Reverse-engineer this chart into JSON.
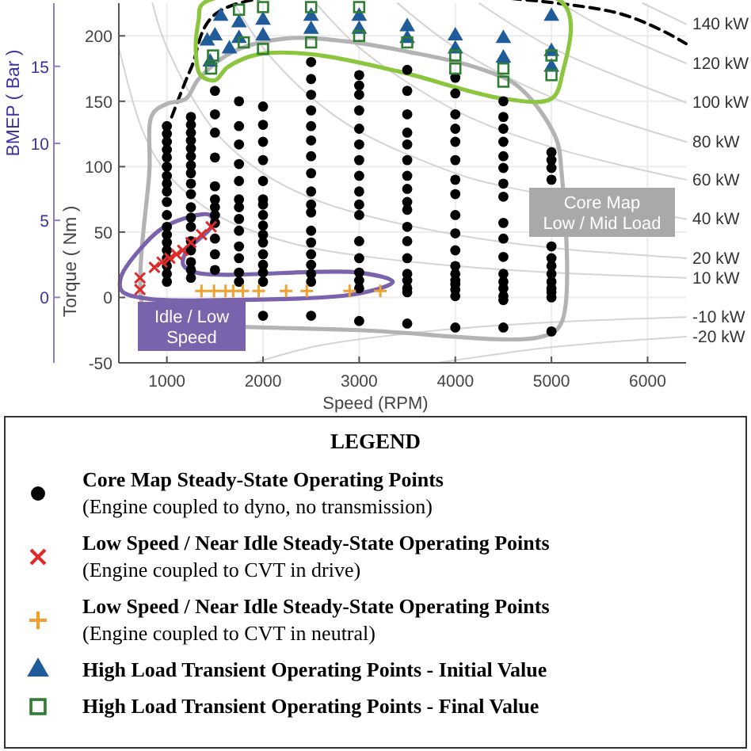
{
  "chart_data": {
    "type": "scatter",
    "xlabel": "Speed (RPM)",
    "ylabel": "Torque ( Nm )",
    "y2label": "BMEP ( Bar )",
    "legend_title": "LEGEND",
    "legend": "bottom",
    "grid": true,
    "xlim": [
      500,
      6400
    ],
    "xticks": [
      1000,
      2000,
      3000,
      4000,
      5000,
      6000
    ],
    "ylim": [
      -50,
      225
    ],
    "yticks": [
      -50,
      0,
      50,
      100,
      150,
      200
    ],
    "y2lim": [
      -4.25,
      19.1
    ],
    "y2ticks": [
      0,
      5,
      10,
      15
    ],
    "annotations": [
      "Core Map\nLow / Mid Load",
      "Idle / Low\nSpeed"
    ],
    "series": [
      {
        "type": "line",
        "name": "140 kW",
        "color": "#d4d4d4",
        "x": [
          5950,
          6400
        ],
        "values": [
          225,
          209
        ]
      },
      {
        "type": "line",
        "name": "120 kW",
        "color": "#d4d4d4",
        "x": [
          5100,
          5500,
          6400
        ],
        "values": [
          225,
          208,
          179
        ]
      },
      {
        "type": "line",
        "name": "100 kW",
        "color": "#d4d4d4",
        "x": [
          4250,
          5000,
          6400
        ],
        "values": [
          225,
          191,
          149
        ]
      },
      {
        "type": "line",
        "name": "80 kW",
        "color": "#d4d4d4",
        "x": [
          3400,
          4000,
          5000,
          6400
        ],
        "values": [
          225,
          191,
          153,
          119
        ]
      },
      {
        "type": "line",
        "name": "60 kW",
        "color": "#d4d4d4",
        "x": [
          2550,
          3000,
          4000,
          5000,
          6400
        ],
        "values": [
          225,
          191,
          143,
          115,
          90
        ]
      },
      {
        "type": "line",
        "name": "40 kW",
        "color": "#d4d4d4",
        "x": [
          1700,
          2000,
          2500,
          3000,
          4000,
          4500,
          6400
        ],
        "values": [
          225,
          191,
          153,
          127,
          95,
          85,
          60
        ]
      },
      {
        "type": "line",
        "name": "20 kW",
        "color": "#d4d4d4",
        "x": [
          850,
          1000,
          1500,
          2000,
          2500,
          3000,
          4000,
          5000,
          6400
        ],
        "values": [
          225,
          191,
          127,
          95,
          76,
          64,
          48,
          38,
          30
        ]
      },
      {
        "type": "line",
        "name": "10 kW",
        "color": "#d4d4d4",
        "x": [
          500,
          750,
          1000,
          1500,
          2000,
          2500,
          3000,
          4000,
          5000,
          6400
        ],
        "values": [
          191,
          127,
          95,
          64,
          48,
          38,
          32,
          24,
          19,
          15
        ]
      },
      {
        "type": "line",
        "name": "-10 kW",
        "color": "#d4d4d4",
        "x": [
          1910,
          2500,
          3000,
          4000,
          5000,
          6400
        ],
        "values": [
          -50,
          -38,
          -32,
          -24,
          -19,
          -15
        ]
      },
      {
        "type": "line",
        "name": "-20 kW",
        "color": "#d4d4d4",
        "x": [
          3820,
          4000,
          5000,
          6400
        ],
        "values": [
          -50,
          -48,
          -38,
          -30
        ]
      },
      {
        "type": "line",
        "color": "#000000",
        "line_style": "dashed",
        "x": [
          1050,
          1250,
          1550,
          5600,
          6400
        ],
        "values": [
          138,
          175,
          219,
          219,
          194
        ]
      },
      {
        "name": "Core Map Steady-State Operating Points\n(Engine coupled to dyno, no transmission)",
        "color": "#000000",
        "marker": "circle",
        "x": [
          1000,
          1000,
          1000,
          1000,
          1000,
          1000,
          1000,
          1000,
          1000,
          1000,
          1000,
          1000,
          1000,
          1000,
          1000,
          1000,
          1000,
          1000,
          1000,
          1250,
          1250,
          1250,
          1250,
          1250,
          1250,
          1250,
          1250,
          1250,
          1250,
          1250,
          1250,
          1250,
          1250,
          1250,
          1250,
          1250,
          1250,
          1500,
          1500,
          1500,
          1500,
          1500,
          1500,
          1500,
          1500,
          1500,
          1500,
          1500,
          1500,
          1750,
          1750,
          1750,
          1750,
          1750,
          1750,
          1750,
          1750,
          1750,
          1750,
          1750,
          1750,
          1750,
          2000,
          2000,
          2000,
          2000,
          2000,
          2000,
          2000,
          2000,
          2000,
          2000,
          2000,
          2000,
          2000,
          2000,
          2000,
          2000,
          2500,
          2500,
          2500,
          2500,
          2500,
          2500,
          2500,
          2500,
          2500,
          2500,
          2500,
          2500,
          2500,
          2500,
          2500,
          2500,
          2500,
          2500,
          3000,
          3000,
          3000,
          3000,
          3000,
          3000,
          3000,
          3000,
          3000,
          3000,
          3000,
          3000,
          3000,
          3000,
          3000,
          3000,
          3000,
          3500,
          3500,
          3500,
          3500,
          3500,
          3500,
          3500,
          3500,
          3500,
          3500,
          3500,
          3500,
          3500,
          3500,
          3500,
          3500,
          3500,
          3500,
          4000,
          4000,
          4000,
          4000,
          4000,
          4000,
          4000,
          4000,
          4000,
          4000,
          4000,
          4000,
          4000,
          4000,
          4000,
          4000,
          4000,
          4000,
          4500,
          4500,
          4500,
          4500,
          4500,
          4500,
          4500,
          4500,
          4500,
          4500,
          4500,
          4500,
          4500,
          4500,
          4500,
          4500,
          4500,
          5000,
          5000,
          5000,
          5000,
          5000,
          5000,
          5000,
          5000,
          5000,
          5000,
          5000,
          5000,
          5000
        ],
        "values": [
          131,
          125,
          119,
          113,
          107,
          100,
          93,
          87,
          81,
          73,
          63,
          54,
          48,
          42,
          36,
          30,
          24,
          18,
          12,
          138,
          132,
          126,
          120,
          114,
          108,
          101,
          95,
          87,
          79,
          69,
          61,
          54,
          43,
          36,
          27,
          21,
          15,
          158,
          140,
          126,
          107,
          85,
          75,
          69,
          63,
          57,
          45,
          33,
          21,
          150,
          131,
          117,
          102,
          89,
          75,
          69,
          60,
          51,
          39,
          30,
          19,
          12,
          146,
          132,
          119,
          105,
          89,
          75,
          71,
          63,
          55,
          48,
          42,
          33,
          25,
          19,
          12,
          -14,
          180,
          167,
          155,
          143,
          131,
          120,
          108,
          95,
          81,
          71,
          65,
          51,
          42,
          33,
          25,
          18,
          12,
          -14,
          170,
          162,
          155,
          143,
          129,
          117,
          105,
          93,
          81,
          71,
          63,
          43,
          30,
          19,
          13,
          7,
          -18,
          174,
          158,
          140,
          126,
          117,
          105,
          93,
          83,
          73,
          67,
          54,
          43,
          30,
          18,
          13,
          7,
          4,
          -20,
          168,
          156,
          140,
          129,
          119,
          105,
          90,
          79,
          63,
          49,
          36,
          24,
          18,
          13,
          10,
          6,
          1,
          -23,
          150,
          138,
          129,
          119,
          108,
          99,
          87,
          77,
          57,
          45,
          31,
          18,
          12,
          7,
          1,
          -2,
          -23,
          111,
          105,
          99,
          90,
          39,
          30,
          24,
          18,
          12,
          7,
          4,
          0,
          -26
        ]
      },
      {
        "name": "Low Speed / Near Idle Steady-State Operating Points\n(Engine coupled to CVT in drive)",
        "color": "#e02a2a",
        "marker": "cross",
        "x": [
          720,
          720,
          870,
          950,
          1030,
          1100,
          1165,
          1250,
          1360,
          1460
        ],
        "values": [
          6,
          15,
          23,
          27,
          30,
          33,
          36,
          42,
          48,
          54
        ]
      },
      {
        "name": "Low Speed / Near Idle Steady-State Operating Points\n(Engine coupled to CVT in neutral)",
        "color": "#f0a030",
        "marker": "plus",
        "x": [
          1360,
          1490,
          1610,
          1690,
          1790,
          1955,
          2240,
          2455,
          2900,
          3220
        ],
        "values": [
          5,
          5,
          5,
          5,
          5,
          5,
          5,
          5,
          5,
          5
        ]
      },
      {
        "name": "High Load Transient Operating Points - Initial Value",
        "color": "#1f5c99",
        "marker": "triangle",
        "x": [
          1420,
          1450,
          1500,
          1560,
          1650,
          1750,
          2000,
          2500,
          3000,
          3500,
          4000,
          4500,
          5000,
          5000,
          5000,
          4500,
          4000,
          3500,
          3000,
          2500,
          2000,
          1750
        ],
        "values": [
          196,
          180,
          200,
          215,
          190,
          210,
          212,
          215,
          215,
          207,
          200,
          198,
          215,
          188,
          176,
          183,
          190,
          198,
          205,
          205,
          200,
          198
        ]
      },
      {
        "name": "High Load Transient Operating Points - Final Value",
        "color": "#2e7d32",
        "marker": "square",
        "x": [
          1460,
          1480,
          1750,
          1800,
          2000,
          2500,
          2500,
          3000,
          3000,
          3500,
          4000,
          4500,
          4500,
          5000,
          5000,
          4000,
          2000
        ],
        "values": [
          175,
          185,
          220,
          195,
          190,
          195,
          222,
          200,
          222,
          195,
          185,
          175,
          165,
          185,
          170,
          175,
          222
        ]
      }
    ]
  }
}
